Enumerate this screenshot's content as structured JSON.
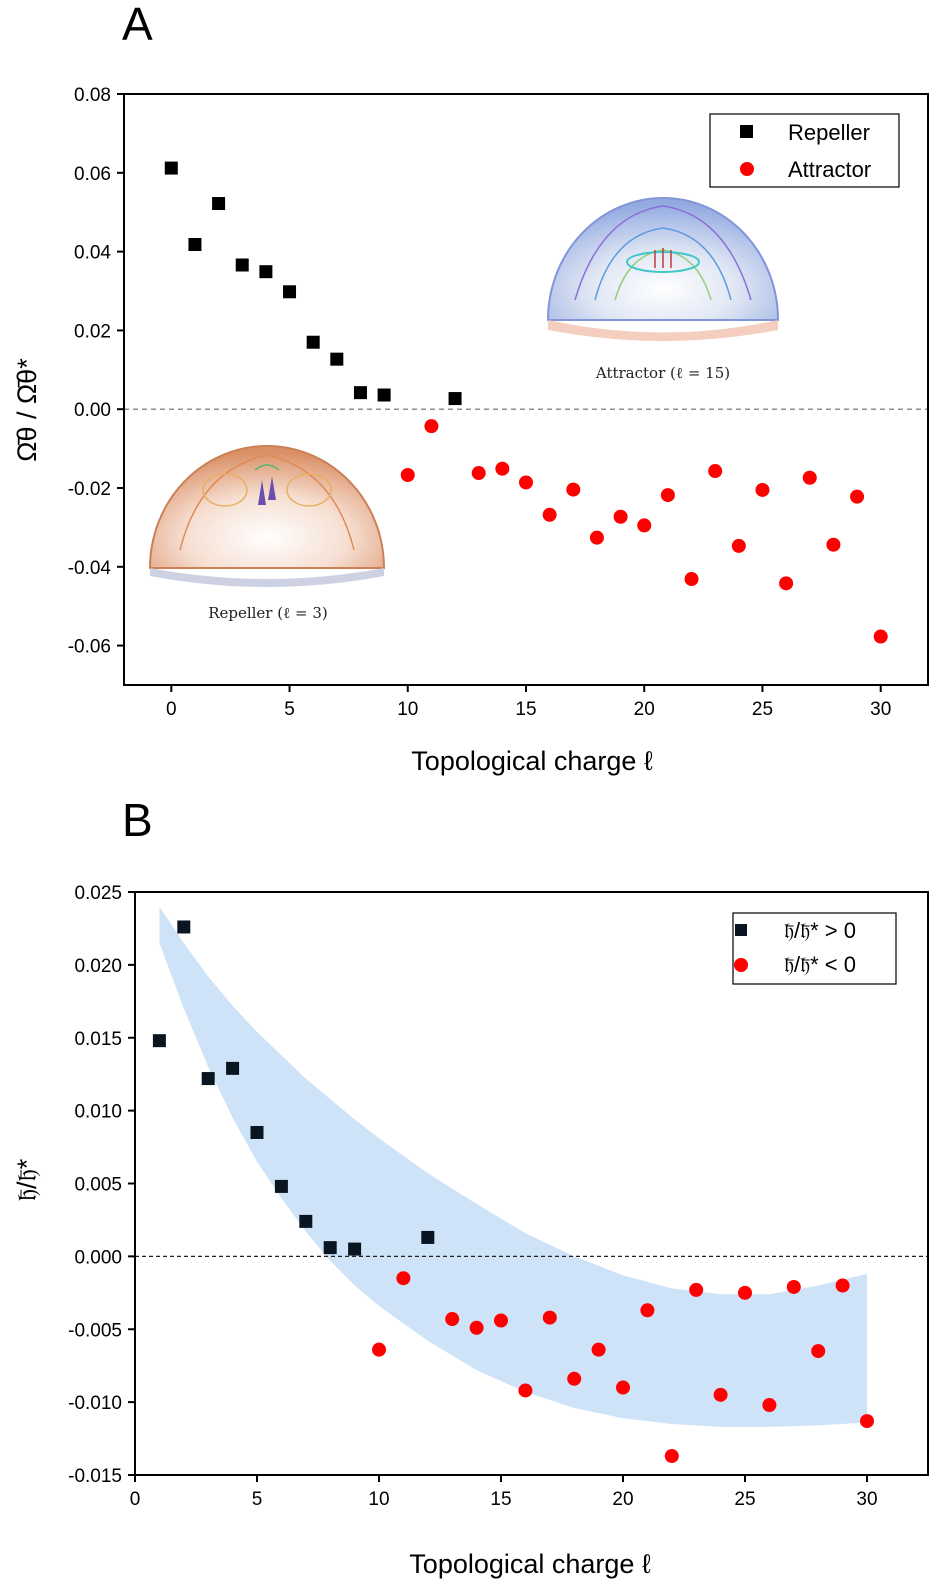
{
  "chart_data": [
    {
      "type": "scatter",
      "panel": "A",
      "xlabel": "Topological charge ℓ",
      "ylabel": "Ω̄θ / Ω̄θ*",
      "xlim": [
        -2,
        32
      ],
      "ylim": [
        -0.07,
        0.08
      ],
      "xticks": [
        0,
        5,
        10,
        15,
        20,
        25,
        30
      ],
      "yticks": [
        0.08,
        0.06,
        0.04,
        0.02,
        0.0,
        -0.02,
        -0.04,
        -0.06
      ],
      "ytick_labels": [
        "0.08",
        "0.06",
        "0.04",
        "0.02",
        "0.00",
        "-0.02",
        "-0.04",
        "-0.06"
      ],
      "reference_line": 0.0,
      "legend_position": "top-right",
      "series": [
        {
          "name": "Repeller",
          "marker": "square",
          "color": "#000000",
          "x": [
            0,
            1,
            2,
            3,
            4,
            5,
            6,
            7,
            8,
            9,
            12
          ],
          "y": [
            0.0612,
            0.0418,
            0.0522,
            0.0366,
            0.0349,
            0.0298,
            0.017,
            0.0127,
            0.0042,
            0.0036,
            0.0027
          ]
        },
        {
          "name": "Attractor",
          "marker": "circle",
          "color": "#ff0000",
          "x": [
            10,
            11,
            13,
            14,
            15,
            16,
            17,
            18,
            19,
            20,
            21,
            22,
            23,
            24,
            25,
            26,
            27,
            28,
            29,
            30
          ],
          "y": [
            -0.0167,
            -0.0043,
            -0.0162,
            -0.0151,
            -0.0186,
            -0.0268,
            -0.0204,
            -0.0326,
            -0.0273,
            -0.0295,
            -0.0218,
            -0.0431,
            -0.0157,
            -0.0347,
            -0.0205,
            -0.0442,
            -0.0174,
            -0.0344,
            -0.0222,
            -0.0577
          ]
        }
      ],
      "insets": [
        {
          "name": "attractor-inset",
          "caption": "Attractor (ℓ = 15)"
        },
        {
          "name": "repeller-inset",
          "caption": "Repeller (ℓ = 3)"
        }
      ]
    },
    {
      "type": "scatter",
      "panel": "B",
      "xlabel": "Topological charge ℓ",
      "ylabel": "𝔥̄/𝔥̄*",
      "xlim": [
        0,
        32.5
      ],
      "ylim": [
        -0.015,
        0.025
      ],
      "xticks": [
        0,
        5,
        10,
        15,
        20,
        25,
        30
      ],
      "yticks": [
        0.025,
        0.02,
        0.015,
        0.01,
        0.005,
        0.0,
        -0.005,
        -0.01,
        -0.015
      ],
      "ytick_labels": [
        "0.025",
        "0.020",
        "0.015",
        "0.010",
        "0.005",
        "0.000",
        "-0.005",
        "-0.010",
        "-0.015"
      ],
      "reference_line": 0.0,
      "legend_position": "top-right",
      "band": {
        "color": "#cfe3f8",
        "x": [
          1,
          2,
          3,
          4,
          5,
          6,
          7,
          8,
          9,
          10,
          12,
          14,
          16,
          18,
          20,
          22,
          24,
          26,
          28,
          30
        ],
        "upper": [
          0.024,
          0.0215,
          0.0192,
          0.0172,
          0.0154,
          0.0138,
          0.0122,
          0.0108,
          0.0094,
          0.0081,
          0.0057,
          0.0036,
          0.0016,
          0.0,
          -0.0013,
          -0.0022,
          -0.0026,
          -0.0026,
          -0.002,
          -0.0012
        ],
        "lower": [
          0.0215,
          0.017,
          0.013,
          0.0095,
          0.0065,
          0.004,
          0.0017,
          -0.0003,
          -0.002,
          -0.0034,
          -0.0058,
          -0.0078,
          -0.0093,
          -0.0104,
          -0.0111,
          -0.0115,
          -0.0117,
          -0.0117,
          -0.0116,
          -0.0114
        ]
      },
      "series": [
        {
          "name": "𝔥̄/𝔥̄* > 0",
          "marker": "square",
          "color": "#0a1522",
          "x": [
            1,
            2,
            3,
            4,
            5,
            6,
            7,
            8,
            9,
            12
          ],
          "y": [
            0.0148,
            0.0226,
            0.0122,
            0.0129,
            0.0085,
            0.0048,
            0.0024,
            0.0006,
            0.0005,
            0.0013
          ]
        },
        {
          "name": "𝔥̄/𝔥̄* < 0",
          "marker": "circle",
          "color": "#ff0000",
          "x": [
            10,
            11,
            13,
            14,
            15,
            16,
            17,
            18,
            19,
            20,
            21,
            22,
            23,
            24,
            25,
            26,
            27,
            28,
            29,
            30
          ],
          "y": [
            -0.0064,
            -0.0015,
            -0.0043,
            -0.0049,
            -0.0044,
            -0.0092,
            -0.0042,
            -0.0084,
            -0.0064,
            -0.009,
            -0.0037,
            -0.0137,
            -0.0023,
            -0.0095,
            -0.0025,
            -0.0102,
            -0.0021,
            -0.0065,
            -0.002,
            -0.0113
          ]
        }
      ]
    }
  ]
}
